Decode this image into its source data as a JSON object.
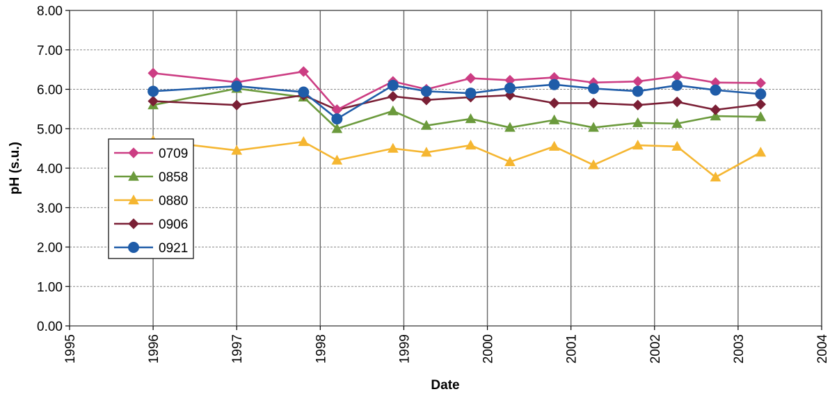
{
  "chart_data": {
    "type": "line",
    "xlabel": "Date",
    "ylabel": "pH (s.u.)",
    "xlim": [
      1995,
      2004
    ],
    "ylim": [
      0,
      8
    ],
    "x_ticks": [
      "1995",
      "1996",
      "1997",
      "1998",
      "1999",
      "2000",
      "2001",
      "2002",
      "2003",
      "2004"
    ],
    "y_ticks": [
      "0.00",
      "1.00",
      "2.00",
      "3.00",
      "4.00",
      "5.00",
      "6.00",
      "7.00",
      "8.00"
    ],
    "grid": true,
    "legend_position": "left",
    "series": [
      {
        "name": "0709",
        "color": "#cc3d83",
        "marker": "diamond",
        "x": [
          1996.0,
          1997.0,
          1997.8,
          1998.2,
          1998.87,
          1999.27,
          1999.8,
          2000.27,
          2000.8,
          2001.27,
          2001.8,
          2002.27,
          2002.73,
          2003.27
        ],
        "y": [
          6.41,
          6.18,
          6.45,
          5.48,
          6.2,
          6.0,
          6.28,
          6.23,
          6.3,
          6.17,
          6.2,
          6.33,
          6.17,
          6.16
        ]
      },
      {
        "name": "0858",
        "color": "#6b9a3c",
        "marker": "triangle",
        "x": [
          1996.0,
          1997.0,
          1997.8,
          1998.2,
          1998.87,
          1999.27,
          1999.8,
          2000.27,
          2000.8,
          2001.27,
          2001.8,
          2002.27,
          2002.73,
          2003.27
        ],
        "y": [
          5.6,
          6.02,
          5.8,
          5.0,
          5.45,
          5.08,
          5.25,
          5.03,
          5.22,
          5.03,
          5.15,
          5.13,
          5.32,
          5.3
        ]
      },
      {
        "name": "0880",
        "color": "#f5b631",
        "marker": "triangle",
        "x": [
          1996.0,
          1997.0,
          1997.8,
          1998.2,
          1998.87,
          1999.27,
          1999.8,
          2000.27,
          2000.8,
          2001.27,
          2001.8,
          2002.27,
          2002.73,
          2003.27
        ],
        "y": [
          4.7,
          4.45,
          4.67,
          4.2,
          4.5,
          4.4,
          4.58,
          4.16,
          4.55,
          4.08,
          4.58,
          4.55,
          3.77,
          4.4
        ]
      },
      {
        "name": "0906",
        "color": "#7a1f35",
        "marker": "diamond",
        "x": [
          1996.0,
          1997.0,
          1997.8,
          1998.2,
          1998.87,
          1999.27,
          1999.8,
          2000.27,
          2000.8,
          2001.27,
          2001.8,
          2002.27,
          2002.73,
          2003.27
        ],
        "y": [
          5.7,
          5.6,
          5.85,
          5.48,
          5.82,
          5.73,
          5.8,
          5.85,
          5.65,
          5.65,
          5.6,
          5.68,
          5.48,
          5.62
        ]
      },
      {
        "name": "0921",
        "color": "#1f5ca8",
        "marker": "circle",
        "x": [
          1996.0,
          1997.0,
          1997.8,
          1998.2,
          1998.87,
          1999.27,
          1999.8,
          2000.27,
          2000.8,
          2001.27,
          2001.8,
          2002.27,
          2002.73,
          2003.27
        ],
        "y": [
          5.95,
          6.08,
          5.93,
          5.25,
          6.1,
          5.95,
          5.9,
          6.03,
          6.12,
          6.02,
          5.95,
          6.1,
          5.98,
          5.88
        ]
      }
    ]
  }
}
